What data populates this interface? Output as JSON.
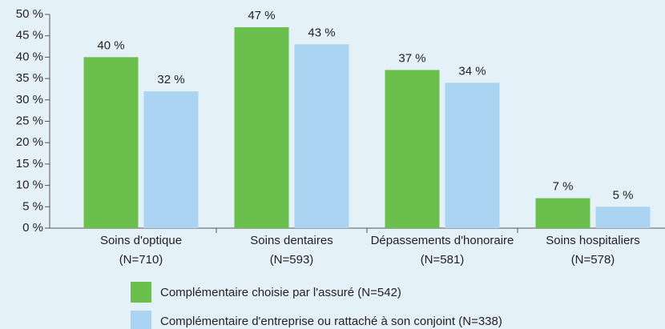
{
  "chart_data": {
    "type": "bar",
    "categories": [
      [
        "Soins d'optique",
        "(N=710)"
      ],
      [
        "Soins dentaires",
        "(N=593)"
      ],
      [
        "Dépassements d'honoraire",
        "(N=581)"
      ],
      [
        "Soins hospitaliers",
        "(N=578)"
      ]
    ],
    "series": [
      {
        "name": "Complémentaire choisie par l'assuré (N=542)",
        "color": "#6bbf4c",
        "values": [
          40,
          47,
          37,
          7
        ],
        "value_labels": [
          "40 %",
          "47 %",
          "37 %",
          "7 %"
        ]
      },
      {
        "name": "Complémentaire d'entreprise ou rattaché à son conjoint (N=338)",
        "color": "#aad4f1",
        "values": [
          32,
          43,
          34,
          5
        ],
        "value_labels": [
          "32 %",
          "43 %",
          "34 %",
          "5 %"
        ]
      }
    ],
    "ylim": [
      0,
      50
    ],
    "yticks": [
      {
        "value": 0,
        "label": "0 %"
      },
      {
        "value": 5,
        "label": "5 %"
      },
      {
        "value": 10,
        "label": "10 %"
      },
      {
        "value": 15,
        "label": "15 %"
      },
      {
        "value": 20,
        "label": "20 %"
      },
      {
        "value": 25,
        "label": "25 %"
      },
      {
        "value": 30,
        "label": "30 %"
      },
      {
        "value": 35,
        "label": "35 %"
      },
      {
        "value": 40,
        "label": "40 %"
      },
      {
        "value": 45,
        "label": "45 %"
      },
      {
        "value": 50,
        "label": "50 %"
      }
    ],
    "legend": "bottom"
  }
}
